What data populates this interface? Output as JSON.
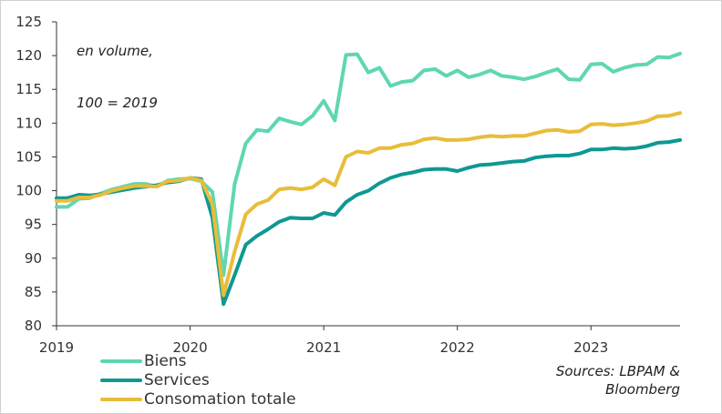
{
  "chart_data": {
    "type": "line",
    "title": "",
    "annotation_lines": [
      "en volume,",
      "100 = 2019"
    ],
    "source_lines": [
      "Sources: LBPAM &",
      "Bloomberg"
    ],
    "xlabel": "",
    "ylabel": "",
    "xlim": [
      2019.0,
      2023.667
    ],
    "ylim": [
      80,
      125
    ],
    "x_ticks": [
      2019,
      2020,
      2021,
      2022,
      2023
    ],
    "y_ticks": [
      80,
      85,
      90,
      95,
      100,
      105,
      110,
      115,
      120,
      125
    ],
    "grid": false,
    "legend_position": "bottom-left",
    "x_start": 2019.0,
    "x_step_months": 1,
    "series": [
      {
        "name": "Biens",
        "color": "#5fd6b3",
        "values": [
          97.6,
          97.6,
          98.8,
          98.9,
          99.6,
          100.2,
          100.6,
          101.0,
          101.0,
          100.6,
          101.5,
          101.7,
          101.8,
          101.4,
          99.8,
          87.5,
          101.0,
          107.0,
          109.0,
          108.8,
          110.7,
          110.2,
          109.8,
          111.1,
          113.3,
          110.4,
          120.1,
          120.2,
          117.5,
          118.2,
          115.5,
          116.1,
          116.3,
          117.8,
          118.0,
          117.0,
          117.8,
          116.8,
          117.2,
          117.8,
          117.0,
          116.8,
          116.5,
          116.9,
          117.5,
          118.0,
          116.5,
          116.4,
          118.7,
          118.8,
          117.6,
          118.2,
          118.6,
          118.7,
          119.8,
          119.7,
          120.3
        ]
      },
      {
        "name": "Services",
        "color": "#0e9893",
        "values": [
          98.9,
          98.9,
          99.4,
          99.3,
          99.5,
          99.8,
          100.1,
          100.4,
          100.6,
          100.8,
          101.2,
          101.4,
          101.9,
          101.7,
          96.0,
          83.2,
          87.5,
          92.0,
          93.3,
          94.3,
          95.4,
          96.0,
          95.9,
          95.9,
          96.7,
          96.4,
          98.3,
          99.4,
          100.0,
          101.1,
          101.9,
          102.4,
          102.7,
          103.1,
          103.2,
          103.2,
          102.9,
          103.4,
          103.8,
          103.9,
          104.1,
          104.3,
          104.4,
          104.9,
          105.1,
          105.2,
          105.2,
          105.5,
          106.1,
          106.1,
          106.3,
          106.2,
          106.3,
          106.6,
          107.1,
          107.2,
          107.5
        ]
      },
      {
        "name": "Consomation totale",
        "color": "#e8bd3a",
        "values": [
          98.5,
          98.5,
          99.0,
          99.0,
          99.4,
          100.0,
          100.4,
          100.7,
          100.7,
          100.6,
          101.4,
          101.5,
          101.9,
          101.5,
          98.0,
          84.5,
          91.0,
          96.5,
          98.0,
          98.6,
          100.2,
          100.4,
          100.2,
          100.5,
          101.7,
          100.8,
          105.0,
          105.8,
          105.6,
          106.3,
          106.3,
          106.8,
          107.0,
          107.6,
          107.8,
          107.5,
          107.5,
          107.6,
          107.9,
          108.1,
          108.0,
          108.1,
          108.1,
          108.5,
          108.9,
          109.0,
          108.7,
          108.8,
          109.8,
          109.9,
          109.7,
          109.8,
          110.0,
          110.3,
          111.0,
          111.1,
          111.5
        ]
      }
    ]
  }
}
